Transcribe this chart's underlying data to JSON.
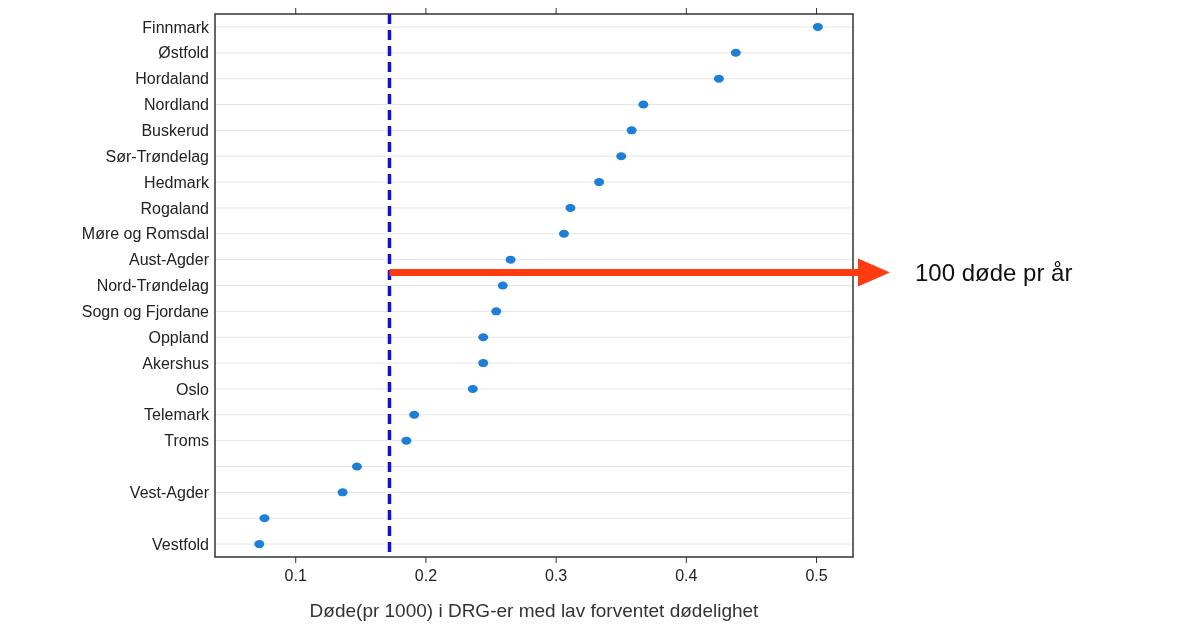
{
  "chart_data": {
    "type": "scatter",
    "orientation": "horizontal",
    "xlabel": "Døde(pr 1000) i DRG-er med lav forventet dødelighet",
    "categories": [
      "Finnmark",
      "Østfold",
      "Hordaland",
      "Nordland",
      "Buskerud",
      "Sør-Trøndelag",
      "Hedmark",
      "Rogaland",
      "Møre og Romsdal",
      "Aust-Agder",
      "Nord-Trøndelag",
      "Sogn og Fjordane",
      "Oppland",
      "Akershus",
      "Oslo",
      "Telemark",
      "Troms",
      null,
      "Vest-Agder",
      null,
      "Vestfold"
    ],
    "values": [
      0.501,
      0.438,
      0.425,
      0.367,
      0.358,
      0.35,
      0.333,
      0.311,
      0.306,
      0.265,
      0.259,
      0.254,
      0.244,
      0.244,
      0.236,
      0.191,
      0.185,
      0.147,
      0.136,
      0.076,
      0.072
    ],
    "color": "#1e7fd8",
    "marker": "circle",
    "xlim": [
      0.038,
      0.528
    ],
    "xticks": [
      0.1,
      0.2,
      0.3,
      0.4,
      0.5
    ],
    "grid": "y",
    "ref_lines": [
      {
        "axis": "x",
        "value": 0.172,
        "color": "#1010e0",
        "line_style": "dashed"
      }
    ],
    "annotations": [
      "100 døde pr år"
    ]
  }
}
